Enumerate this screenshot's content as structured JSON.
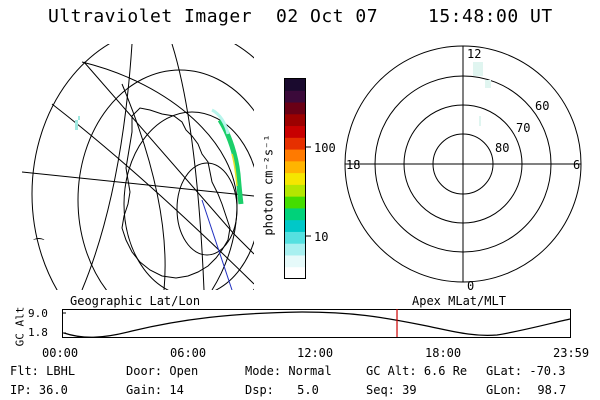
{
  "header": {
    "instrument": "Ultraviolet Imager",
    "date": "02 Oct 07",
    "time": "15:48:00 UT"
  },
  "colorbar": {
    "unit_label": "photon cm⁻²s⁻¹",
    "tick_100": "100",
    "tick_10": "10",
    "colors": [
      "#1a0a2e",
      "#3b0a3a",
      "#6a0015",
      "#9c0000",
      "#c80000",
      "#e63000",
      "#ff7a00",
      "#ffb400",
      "#f5e600",
      "#b4e600",
      "#44dd00",
      "#00d27a",
      "#00c8c8",
      "#55e0e0",
      "#a8f0f0",
      "#e6fafa",
      "#ffffff"
    ]
  },
  "left_panel": {
    "caption": "Geographic Lat/Lon"
  },
  "right_panel": {
    "caption": "Apex MLat/MLT",
    "mlt_labels": {
      "top": "12",
      "left": "18",
      "right": "6",
      "bottom": "0"
    },
    "mlat_labels": {
      "l60": "60",
      "l70": "70",
      "l80": "80"
    }
  },
  "timeline": {
    "axis_label": "GC Alt",
    "y_top": "9.0",
    "y_bottom": "1.8",
    "x_ticks": [
      "00:00",
      "06:00",
      "12:00",
      "18:00",
      "23:59"
    ],
    "current_marker_time": "15:48",
    "marker_color": "#cc0000"
  },
  "info": {
    "flt_label": "Flt:",
    "flt_value": "LBHL",
    "ip_label": "IP:",
    "ip_value": "36.0",
    "door_label": "Door:",
    "door_value": "Open",
    "gain_label": "Gain:",
    "gain_value": "14",
    "mode_label": "Mode:",
    "mode_value": "Normal",
    "dsp_label": "Dsp:",
    "dsp_value": "5.0",
    "gcalt_label": "GC Alt:",
    "gcalt_value": "6.6 Re",
    "seq_label": "Seq:",
    "seq_value": "39",
    "glat_label": "GLat:",
    "glat_value": "-70.3",
    "glon_label": "GLon:",
    "glon_value": "98.7"
  }
}
